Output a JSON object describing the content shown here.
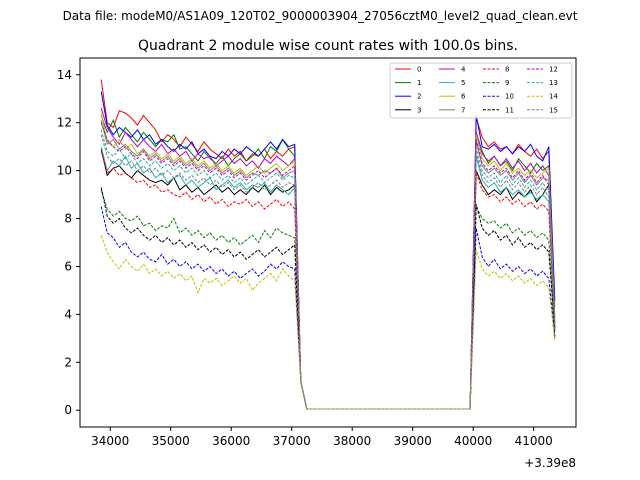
{
  "chart_data": {
    "type": "line",
    "suptitle": "Data file: modeM0/AS1A09_120T02_9000003904_27056cztM0_level2_quad_clean.evt",
    "title": "Quadrant 2 module wise count rates with 100.0s bins.",
    "xlabel": "",
    "ylabel": "",
    "x_offset_label": "+3.39e8",
    "xlim": [
      33500,
      41700
    ],
    "ylim": [
      -0.7,
      14.7
    ],
    "x_ticks": [
      34000,
      35000,
      36000,
      37000,
      38000,
      39000,
      40000,
      41000
    ],
    "x_tick_labels": [
      "34000",
      "35000",
      "36000",
      "37000",
      "38000",
      "39000",
      "40000",
      "41000"
    ],
    "y_ticks": [
      0,
      2,
      4,
      6,
      8,
      10,
      12,
      14
    ],
    "y_tick_labels": [
      "0",
      "2",
      "4",
      "6",
      "8",
      "10",
      "12",
      "14"
    ],
    "legend": {
      "position": "top-right",
      "columns": 4
    },
    "segment1": {
      "x_start": 33850,
      "x_step": 100,
      "points": 33
    },
    "gap": {
      "x_start": 37150,
      "x_step": 100,
      "values": [
        1.2,
        0.05,
        0.05,
        0.05,
        0.05,
        0.05,
        0.05,
        0.05,
        0.05,
        0.05,
        0.05,
        0.05,
        0.05,
        0.05,
        0.05,
        0.05,
        0.05,
        0.05,
        0.05,
        0.05,
        0.05,
        0.05,
        0.05,
        0.05,
        0.05,
        0.05,
        0.05,
        0.05,
        0.05
      ]
    },
    "segment2": {
      "x_start": 40050,
      "x_step": 100,
      "points": 14
    },
    "series": [
      {
        "name": "0",
        "color": "#ff0000",
        "dash": false,
        "seg1": [
          13.8,
          12.0,
          11.8,
          12.5,
          12.4,
          12.2,
          11.9,
          12.3,
          12.0,
          11.7,
          11.2,
          11.5,
          11.3,
          11.0,
          11.4,
          11.1,
          10.8,
          11.2,
          10.9,
          10.7,
          10.5,
          10.9,
          10.6,
          10.8,
          10.4,
          10.7,
          10.6,
          10.9,
          10.5,
          10.8,
          10.6,
          10.9,
          11.0
        ],
        "seg2": [
          12.2,
          11.4,
          11.0,
          11.2,
          10.9,
          11.0,
          10.7,
          11.1,
          10.8,
          10.6,
          10.9,
          10.5,
          10.8,
          4.3
        ]
      },
      {
        "name": "1",
        "color": "#008000",
        "dash": false,
        "seg1": [
          12.3,
          11.6,
          12.1,
          11.4,
          11.8,
          11.5,
          11.2,
          11.6,
          11.3,
          11.0,
          11.3,
          11.2,
          11.5,
          10.9,
          11.0,
          10.7,
          10.4,
          10.8,
          10.5,
          10.3,
          10.6,
          10.2,
          10.5,
          10.7,
          10.4,
          10.6,
          10.9,
          10.5,
          11.0,
          10.8,
          11.3,
          10.9,
          10.6
        ],
        "seg2": [
          11.6,
          10.8,
          10.3,
          10.6,
          10.2,
          10.4,
          10.0,
          10.5,
          10.2,
          9.9,
          10.3,
          10.0,
          10.2,
          3.9
        ]
      },
      {
        "name": "2",
        "color": "#0000ff",
        "dash": false,
        "seg1": [
          13.3,
          11.9,
          11.5,
          11.8,
          11.6,
          11.4,
          11.7,
          11.3,
          11.5,
          11.1,
          11.3,
          11.0,
          10.8,
          11.1,
          10.9,
          11.2,
          10.7,
          10.9,
          10.6,
          10.5,
          10.8,
          10.6,
          10.9,
          10.7,
          11.0,
          10.8,
          10.6,
          10.9,
          11.2,
          10.9,
          11.3,
          11.0,
          11.1
        ],
        "seg2": [
          12.3,
          11.0,
          10.9,
          11.1,
          10.8,
          11.0,
          10.7,
          11.0,
          10.8,
          11.1,
          10.6,
          10.4,
          11.0,
          4.6
        ]
      },
      {
        "name": "3",
        "color": "#000000",
        "dash": false,
        "seg1": [
          10.9,
          9.8,
          10.1,
          10.2,
          9.9,
          9.7,
          10.0,
          9.8,
          9.6,
          9.5,
          9.6,
          9.4,
          9.7,
          9.2,
          9.4,
          9.1,
          9.3,
          9.0,
          9.2,
          9.4,
          9.1,
          9.3,
          9.0,
          9.2,
          9.0,
          9.3,
          9.1,
          9.4,
          9.0,
          9.3,
          9.1,
          9.2,
          9.4
        ],
        "seg2": [
          10.0,
          9.4,
          9.0,
          9.2,
          9.0,
          9.3,
          8.8,
          9.1,
          8.9,
          9.2,
          8.7,
          9.0,
          9.4,
          3.4
        ]
      },
      {
        "name": "4",
        "color": "#bf00bf",
        "dash": false,
        "seg1": [
          12.6,
          11.8,
          11.4,
          11.1,
          11.6,
          11.3,
          11.0,
          11.3,
          11.0,
          10.8,
          11.1,
          10.7,
          10.9,
          10.6,
          10.8,
          10.4,
          10.7,
          10.5,
          10.6,
          10.2,
          10.4,
          10.6,
          10.3,
          10.5,
          10.2,
          10.4,
          10.1,
          10.5,
          10.3,
          10.6,
          10.4,
          10.2,
          10.5
        ],
        "seg2": [
          11.6,
          10.7,
          10.4,
          10.6,
          10.2,
          10.5,
          10.1,
          10.4,
          10.0,
          10.3,
          9.9,
          10.2,
          9.8,
          3.7
        ]
      },
      {
        "name": "5",
        "color": "#20b2aa",
        "dash": false,
        "seg1": [
          11.0,
          10.0,
          10.4,
          10.2,
          10.6,
          10.1,
          10.3,
          9.9,
          10.1,
          9.7,
          9.9,
          9.5,
          9.7,
          9.8,
          9.4,
          9.6,
          9.3,
          9.5,
          9.7,
          9.2,
          9.4,
          9.6,
          9.3,
          9.5,
          9.2,
          9.4,
          9.3,
          9.5,
          9.1,
          9.4,
          9.2,
          9.0,
          9.3
        ],
        "seg2": [
          10.6,
          9.6,
          9.3,
          9.5,
          9.1,
          9.3,
          9.0,
          9.2,
          8.9,
          9.1,
          8.8,
          9.0,
          8.7,
          3.3
        ]
      },
      {
        "name": "6",
        "color": "#bfbf00",
        "dash": false,
        "seg1": [
          12.4,
          11.2,
          11.0,
          11.3,
          10.9,
          11.1,
          10.7,
          10.9,
          10.6,
          10.8,
          10.5,
          10.7,
          10.4,
          10.6,
          10.3,
          10.5,
          10.2,
          10.4,
          10.1,
          10.3,
          10.0,
          10.2,
          9.9,
          10.1,
          9.8,
          10.0,
          10.2,
          9.9,
          10.1,
          10.3,
          10.0,
          10.2,
          10.4
        ],
        "seg2": [
          11.5,
          10.5,
          10.2,
          10.4,
          10.0,
          10.3,
          9.9,
          10.1,
          9.8,
          10.0,
          9.7,
          9.9,
          10.1,
          3.8
        ]
      },
      {
        "name": "7",
        "color": "#808080",
        "dash": false,
        "seg1": [
          12.1,
          11.1,
          11.3,
          10.9,
          11.1,
          10.8,
          10.6,
          10.9,
          10.5,
          10.7,
          10.4,
          10.6,
          10.3,
          10.5,
          10.2,
          10.4,
          10.1,
          10.3,
          10.0,
          10.2,
          9.9,
          10.1,
          9.8,
          10.0,
          9.7,
          9.9,
          9.8,
          10.0,
          9.9,
          10.1,
          9.7,
          9.9,
          10.0
        ],
        "seg2": [
          11.2,
          10.2,
          9.9,
          10.1,
          9.8,
          10.0,
          9.6,
          9.9,
          9.5,
          9.8,
          9.4,
          9.7,
          9.6,
          3.5
        ]
      },
      {
        "name": "8",
        "color": "#ff0000",
        "dash": true,
        "seg1": [
          10.8,
          9.9,
          10.1,
          9.8,
          9.9,
          9.7,
          9.5,
          9.6,
          9.3,
          9.4,
          9.1,
          9.2,
          9.0,
          8.9,
          9.1,
          8.8,
          9.0,
          8.7,
          8.9,
          8.6,
          8.8,
          8.5,
          8.7,
          8.6,
          8.8,
          8.5,
          8.7,
          8.4,
          8.6,
          8.8,
          8.5,
          8.7,
          8.4
        ],
        "seg2": [
          9.9,
          9.2,
          8.9,
          9.0,
          8.7,
          8.9,
          8.6,
          8.8,
          8.5,
          8.7,
          8.4,
          8.6,
          8.3,
          3.2
        ]
      },
      {
        "name": "9",
        "color": "#008000",
        "dash": true,
        "seg1": [
          9.2,
          8.4,
          8.1,
          8.3,
          8.0,
          7.9,
          8.1,
          7.7,
          7.8,
          7.5,
          7.7,
          7.6,
          8.0,
          7.4,
          7.6,
          7.3,
          7.5,
          7.2,
          7.4,
          7.1,
          7.3,
          7.0,
          7.2,
          6.9,
          7.1,
          7.3,
          7.0,
          7.5,
          7.2,
          7.6,
          7.4,
          7.3,
          7.2
        ],
        "seg2": [
          8.5,
          8.0,
          7.8,
          7.9,
          7.6,
          7.8,
          7.4,
          7.6,
          7.3,
          7.5,
          7.2,
          7.4,
          7.1,
          3.0
        ]
      },
      {
        "name": "10",
        "color": "#0000ff",
        "dash": true,
        "seg1": [
          8.5,
          7.4,
          7.2,
          6.8,
          7.0,
          6.6,
          6.4,
          6.6,
          6.3,
          6.2,
          6.5,
          6.1,
          6.3,
          6.0,
          6.2,
          5.9,
          6.1,
          5.8,
          6.0,
          5.7,
          5.9,
          5.6,
          5.8,
          5.5,
          5.7,
          5.9,
          5.6,
          5.8,
          6.1,
          5.9,
          6.2,
          6.0,
          5.9
        ],
        "seg2": [
          7.6,
          6.4,
          6.0,
          6.3,
          5.9,
          6.1,
          5.8,
          6.0,
          5.7,
          5.9,
          5.6,
          5.8,
          5.5,
          3.1
        ]
      },
      {
        "name": "11",
        "color": "#000000",
        "dash": true,
        "seg1": [
          9.3,
          8.1,
          7.8,
          8.0,
          7.6,
          7.4,
          7.6,
          7.3,
          7.1,
          7.3,
          7.0,
          7.2,
          6.9,
          7.1,
          6.8,
          7.0,
          6.7,
          6.9,
          6.6,
          6.8,
          6.5,
          6.7,
          6.4,
          6.6,
          6.3,
          6.5,
          6.7,
          6.4,
          6.6,
          6.8,
          6.5,
          6.7,
          6.9
        ],
        "seg2": [
          8.6,
          7.6,
          7.3,
          7.5,
          7.1,
          7.3,
          6.9,
          7.2,
          6.8,
          7.0,
          6.7,
          6.9,
          6.6,
          3.4
        ]
      },
      {
        "name": "12",
        "color": "#bf00bf",
        "dash": true,
        "seg1": [
          12.0,
          11.3,
          11.0,
          10.8,
          11.0,
          10.7,
          10.5,
          10.8,
          10.4,
          10.6,
          10.3,
          10.5,
          10.2,
          10.4,
          10.1,
          10.3,
          10.0,
          10.2,
          9.9,
          10.1,
          9.8,
          10.0,
          9.7,
          9.9,
          9.6,
          9.8,
          10.0,
          9.7,
          9.9,
          10.1,
          9.8,
          10.0,
          10.2
        ],
        "seg2": [
          11.3,
          10.3,
          10.0,
          10.2,
          9.9,
          10.1,
          9.7,
          10.0,
          9.6,
          9.9,
          9.5,
          9.8,
          9.4,
          3.6
        ]
      },
      {
        "name": "13",
        "color": "#20b2aa",
        "dash": true,
        "seg1": [
          11.7,
          10.8,
          10.6,
          10.9,
          10.5,
          10.7,
          10.3,
          10.5,
          10.2,
          10.4,
          10.1,
          10.3,
          10.0,
          10.2,
          9.9,
          10.1,
          9.8,
          10.0,
          9.7,
          9.9,
          9.6,
          9.8,
          9.5,
          9.7,
          9.4,
          9.6,
          9.8,
          9.5,
          9.7,
          9.9,
          9.6,
          9.8,
          9.7
        ],
        "seg2": [
          10.9,
          10.0,
          9.7,
          9.9,
          9.5,
          9.8,
          9.4,
          9.7,
          9.3,
          9.6,
          9.2,
          9.5,
          9.1,
          3.5
        ]
      },
      {
        "name": "14",
        "color": "#bfbf00",
        "dash": true,
        "seg1": [
          7.3,
          6.6,
          6.2,
          5.9,
          6.3,
          6.0,
          5.8,
          6.1,
          5.7,
          5.9,
          5.6,
          5.8,
          5.5,
          5.7,
          5.4,
          5.6,
          4.9,
          5.5,
          5.3,
          5.5,
          5.2,
          5.4,
          5.6,
          5.3,
          5.5,
          5.0,
          5.3,
          5.5,
          5.7,
          5.4,
          5.9,
          5.6,
          5.4
        ],
        "seg2": [
          6.7,
          5.9,
          5.6,
          5.8,
          5.5,
          5.7,
          5.4,
          5.6,
          5.3,
          5.5,
          5.2,
          5.4,
          5.1,
          2.9
        ]
      },
      {
        "name": "15",
        "color": "#808080",
        "dash": true,
        "seg1": [
          11.5,
          10.6,
          10.3,
          10.5,
          10.2,
          10.4,
          10.0,
          10.2,
          9.9,
          10.1,
          9.8,
          10.0,
          9.7,
          9.9,
          9.6,
          9.8,
          9.5,
          9.7,
          9.4,
          9.6,
          9.3,
          9.5,
          9.2,
          9.4,
          9.1,
          9.3,
          9.5,
          9.2,
          9.4,
          9.6,
          9.3,
          9.5,
          9.4
        ],
        "seg2": [
          10.7,
          9.8,
          9.5,
          9.7,
          9.3,
          9.6,
          9.2,
          9.5,
          9.1,
          9.4,
          9.0,
          9.3,
          8.9,
          3.3
        ]
      }
    ]
  }
}
